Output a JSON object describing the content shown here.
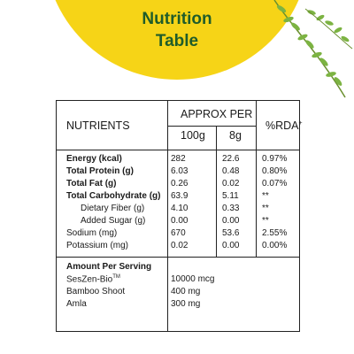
{
  "title": {
    "line1": "Nutrition",
    "line2": "Table"
  },
  "header": {
    "nutrients": "NUTRIENTS",
    "approx_per": "APPROX PER",
    "col_100g": "100g",
    "col_8g": "8g",
    "rda": "%RDA",
    "rda_mark": "+"
  },
  "rows": [
    {
      "name": "Energy (kcal)",
      "v100": "282",
      "v8": "22.6",
      "rda": "0.97%",
      "bold": true
    },
    {
      "name": "Total Protein (g)",
      "v100": "6.03",
      "v8": "0.48",
      "rda": "0.80%",
      "bold": true
    },
    {
      "name": "Total Fat (g)",
      "v100": "0.26",
      "v8": "0.02",
      "rda": "0.07%",
      "bold": true
    },
    {
      "name": "Total Carbohydrate (g)",
      "v100": "63.9",
      "v8": "5.11",
      "rda": "**",
      "bold": true
    },
    {
      "name": "Dietary Fiber (g)",
      "v100": "4.10",
      "v8": "0.33",
      "rda": "**",
      "indent": true
    },
    {
      "name": "Added Sugar (g)",
      "v100": "0.00",
      "v8": "0.00",
      "rda": "**",
      "indent": true
    },
    {
      "name": "Sodium (mg)",
      "v100": "670",
      "v8": "53.6",
      "rda": "2.55%"
    },
    {
      "name": "Potassium (mg)",
      "v100": "0.02",
      "v8": "0.00",
      "rda": "0.00%"
    }
  ],
  "serving": {
    "heading": "Amount Per Serving",
    "items": [
      {
        "name": "SesZen-Bio",
        "mark": "TM",
        "value": "10000 mcg"
      },
      {
        "name": "Bamboo Shoot",
        "value": "400 mg"
      },
      {
        "name": "Amla",
        "value": "300 mg"
      }
    ]
  },
  "colors": {
    "accent_yellow": "#f6d417",
    "title_green": "#1f5c2a",
    "leaf_green": "#7cb342"
  },
  "icons": [
    "leaf-branch-icon"
  ]
}
